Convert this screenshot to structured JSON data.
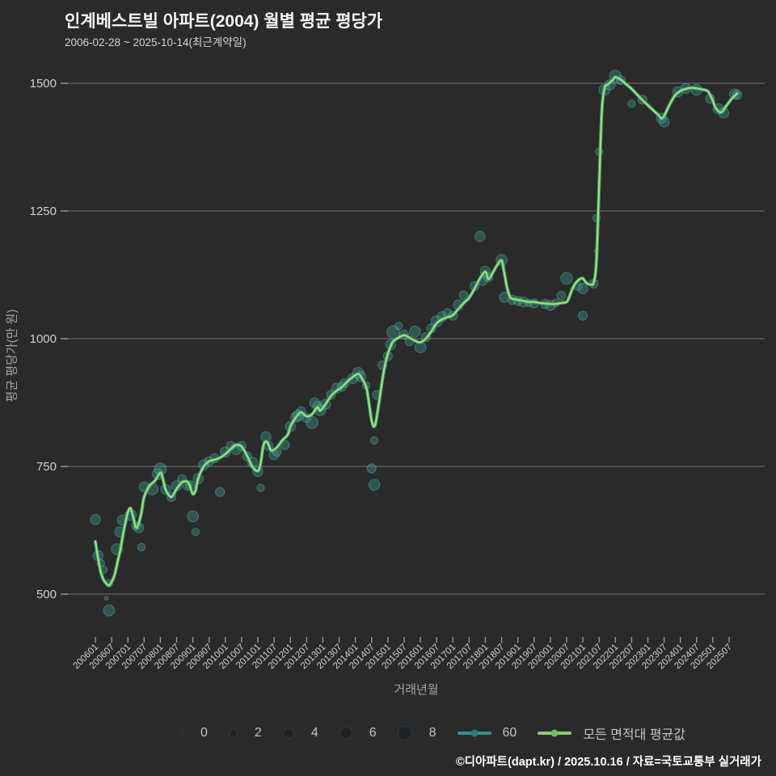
{
  "header": {
    "title": "인계베스트빌 아파트(2004) 월별 평균 평당가",
    "subtitle": "2006-02-28 ~ 2025-10-14(최근계약일)"
  },
  "chart_data": {
    "type": "line",
    "title": "인계베스트빌 아파트(2004) 월별 평균 평당가",
    "xlabel": "거래년월",
    "ylabel": "평균 평당가(만 원)",
    "ylim": [
      420,
      1520
    ],
    "grid": true,
    "legend_position": "bottom",
    "y_ticks": [
      500,
      750,
      1000,
      1250,
      1500
    ],
    "x_tick_labels": [
      "200601",
      "200607",
      "200701",
      "200707",
      "200801",
      "200807",
      "200901",
      "200907",
      "201001",
      "201007",
      "201101",
      "201107",
      "201201",
      "201207",
      "201301",
      "201307",
      "201401",
      "201407",
      "201501",
      "201507",
      "201601",
      "201607",
      "201701",
      "201707",
      "201801",
      "201807",
      "201901",
      "201907",
      "202001",
      "202007",
      "202101",
      "202107",
      "202201",
      "202207",
      "202301",
      "202307",
      "202401",
      "202407",
      "202501",
      "202507"
    ],
    "colors": {
      "background": "#2a2a2b",
      "grid": "#5c5c60",
      "tick": "#9a9a9a",
      "tick_text": "#cfcfcf",
      "scatter_fill": "rgba(61,166,152,0.36)",
      "scatter_stroke": "rgba(126,224,207,0.30)",
      "line_60": "#2f968d",
      "line_avg": "#a6e062"
    },
    "series": [
      {
        "name": "60",
        "color": "#2f968d",
        "width": 4.2
      },
      {
        "name": "모든 면적대 평균값",
        "color": "#a6e062",
        "width": 2.2
      }
    ],
    "avg_line_points": [
      [
        "200601",
        603
      ],
      [
        "200602",
        570
      ],
      [
        "200603",
        543
      ],
      [
        "200604",
        528
      ],
      [
        "200605",
        521
      ],
      [
        "200606",
        517
      ],
      [
        "200607",
        524
      ],
      [
        "200608",
        536
      ],
      [
        "200609",
        558
      ],
      [
        "200610",
        582
      ],
      [
        "200611",
        610
      ],
      [
        "200612",
        638
      ],
      [
        "200701",
        660
      ],
      [
        "200702",
        668
      ],
      [
        "200703",
        650
      ],
      [
        "200704",
        630
      ],
      [
        "200705",
        638
      ],
      [
        "200706",
        660
      ],
      [
        "200707",
        690
      ],
      [
        "200709",
        712
      ],
      [
        "200711",
        722
      ],
      [
        "200801",
        738
      ],
      [
        "200802",
        724
      ],
      [
        "200803",
        704
      ],
      [
        "200805",
        690
      ],
      [
        "200807",
        706
      ],
      [
        "200809",
        719
      ],
      [
        "200811",
        720
      ],
      [
        "200812",
        710
      ],
      [
        "200901",
        696
      ],
      [
        "200902",
        703
      ],
      [
        "200903",
        727
      ],
      [
        "200905",
        750
      ],
      [
        "200907",
        760
      ],
      [
        "200909",
        763
      ],
      [
        "200911",
        767
      ],
      [
        "201001",
        774
      ],
      [
        "201003",
        784
      ],
      [
        "201005",
        792
      ],
      [
        "201007",
        789
      ],
      [
        "201009",
        771
      ],
      [
        "201011",
        749
      ],
      [
        "201101",
        741
      ],
      [
        "201102",
        756
      ],
      [
        "201103",
        790
      ],
      [
        "201104",
        799
      ],
      [
        "201105",
        792
      ],
      [
        "201106",
        781
      ],
      [
        "201108",
        787
      ],
      [
        "201110",
        801
      ],
      [
        "201112",
        812
      ],
      [
        "201201",
        828
      ],
      [
        "201203",
        846
      ],
      [
        "201204",
        852
      ],
      [
        "201205",
        856
      ],
      [
        "201207",
        848
      ],
      [
        "201209",
        852
      ],
      [
        "201211",
        866
      ],
      [
        "201212",
        859
      ],
      [
        "201302",
        872
      ],
      [
        "201304",
        888
      ],
      [
        "201306",
        898
      ],
      [
        "201308",
        905
      ],
      [
        "201310",
        916
      ],
      [
        "201312",
        925
      ],
      [
        "201402",
        931
      ],
      [
        "201403",
        926
      ],
      [
        "201405",
        905
      ],
      [
        "201406",
        875
      ],
      [
        "201407",
        840
      ],
      [
        "201408",
        828
      ],
      [
        "201409",
        850
      ],
      [
        "201411",
        920
      ],
      [
        "201412",
        950
      ],
      [
        "201501",
        970
      ],
      [
        "201502",
        985
      ],
      [
        "201503",
        995
      ],
      [
        "201505",
        1002
      ],
      [
        "201507",
        1007
      ],
      [
        "201509",
        1002
      ],
      [
        "201511",
        996
      ],
      [
        "201601",
        993
      ],
      [
        "201603",
        1000
      ],
      [
        "201605",
        1014
      ],
      [
        "201607",
        1030
      ],
      [
        "201609",
        1038
      ],
      [
        "201611",
        1042
      ],
      [
        "201701",
        1046
      ],
      [
        "201703",
        1058
      ],
      [
        "201705",
        1070
      ],
      [
        "201707",
        1080
      ],
      [
        "201709",
        1098
      ],
      [
        "201711",
        1118
      ],
      [
        "201801",
        1131
      ],
      [
        "201802",
        1117
      ],
      [
        "201803",
        1122
      ],
      [
        "201805",
        1141
      ],
      [
        "201807",
        1153
      ],
      [
        "201808",
        1128
      ],
      [
        "201809",
        1100
      ],
      [
        "201810",
        1083
      ],
      [
        "201811",
        1078
      ],
      [
        "201901",
        1076
      ],
      [
        "201903",
        1074
      ],
      [
        "201905",
        1072
      ],
      [
        "201907",
        1072
      ],
      [
        "201909",
        1070
      ],
      [
        "201911",
        1069
      ],
      [
        "202001",
        1068
      ],
      [
        "202003",
        1068
      ],
      [
        "202005",
        1070
      ],
      [
        "202007",
        1072
      ],
      [
        "202008",
        1082
      ],
      [
        "202009",
        1096
      ],
      [
        "202010",
        1106
      ],
      [
        "202011",
        1113
      ],
      [
        "202012",
        1117
      ],
      [
        "202101",
        1118
      ],
      [
        "202102",
        1111
      ],
      [
        "202103",
        1107
      ],
      [
        "202104",
        1106
      ],
      [
        "202105",
        1110
      ],
      [
        "202106",
        1150
      ],
      [
        "202107",
        1300
      ],
      [
        "202108",
        1445
      ],
      [
        "202109",
        1490
      ],
      [
        "202110",
        1497
      ],
      [
        "202112",
        1506
      ],
      [
        "202201",
        1512
      ],
      [
        "202203",
        1507
      ],
      [
        "202205",
        1498
      ],
      [
        "202207",
        1489
      ],
      [
        "202209",
        1478
      ],
      [
        "202211",
        1467
      ],
      [
        "202301",
        1457
      ],
      [
        "202303",
        1447
      ],
      [
        "202305",
        1437
      ],
      [
        "202306",
        1431
      ],
      [
        "202307",
        1436
      ],
      [
        "202309",
        1458
      ],
      [
        "202311",
        1476
      ],
      [
        "202401",
        1485
      ],
      [
        "202403",
        1489
      ],
      [
        "202405",
        1491
      ],
      [
        "202407",
        1490
      ],
      [
        "202409",
        1488
      ],
      [
        "202411",
        1485
      ],
      [
        "202412",
        1477
      ],
      [
        "202501",
        1466
      ],
      [
        "202502",
        1452
      ],
      [
        "202504",
        1443
      ],
      [
        "202506",
        1456
      ],
      [
        "202508",
        1470
      ],
      [
        "202510",
        1480
      ]
    ],
    "scatter_points": [
      [
        "200601",
        646,
        3
      ],
      [
        "200602",
        575,
        3
      ],
      [
        "200603",
        560,
        1
      ],
      [
        "200604",
        548,
        1
      ],
      [
        "200605",
        492,
        0
      ],
      [
        "200606",
        468,
        4
      ],
      [
        "200606",
        521,
        1
      ],
      [
        "200609",
        588,
        4
      ],
      [
        "200610",
        622,
        3
      ],
      [
        "200611",
        645,
        3
      ],
      [
        "200702",
        655,
        4
      ],
      [
        "200704",
        634,
        2
      ],
      [
        "200705",
        630,
        3
      ],
      [
        "200706",
        592,
        1
      ],
      [
        "200707",
        710,
        3
      ],
      [
        "200710",
        706,
        5
      ],
      [
        "200712",
        735,
        4
      ],
      [
        "200801",
        745,
        5
      ],
      [
        "200803",
        705,
        3
      ],
      [
        "200805",
        690,
        2
      ],
      [
        "200807",
        712,
        3
      ],
      [
        "200809",
        725,
        2
      ],
      [
        "200811",
        712,
        2
      ],
      [
        "200812",
        713,
        2
      ],
      [
        "200901",
        652,
        4
      ],
      [
        "200902",
        622,
        1
      ],
      [
        "200903",
        726,
        3
      ],
      [
        "200905",
        753,
        3
      ],
      [
        "200907",
        760,
        2
      ],
      [
        "200909",
        766,
        2
      ],
      [
        "200911",
        700,
        2
      ],
      [
        "201001",
        778,
        3
      ],
      [
        "201003",
        790,
        2
      ],
      [
        "201005",
        784,
        4
      ],
      [
        "201007",
        790,
        2
      ],
      [
        "201009",
        770,
        2
      ],
      [
        "201011",
        758,
        3
      ],
      [
        "201101",
        740,
        3
      ],
      [
        "201102",
        708,
        1
      ],
      [
        "201104",
        808,
        3
      ],
      [
        "201105",
        790,
        2
      ],
      [
        "201107",
        773,
        3
      ],
      [
        "201108",
        779,
        2
      ],
      [
        "201111",
        792,
        2
      ],
      [
        "201201",
        828,
        3
      ],
      [
        "201203",
        846,
        3
      ],
      [
        "201204",
        850,
        4
      ],
      [
        "201205",
        858,
        2
      ],
      [
        "201207",
        845,
        2
      ],
      [
        "201209",
        836,
        5
      ],
      [
        "201210",
        874,
        3
      ],
      [
        "201211",
        868,
        2
      ],
      [
        "201212",
        860,
        4
      ],
      [
        "201302",
        872,
        3
      ],
      [
        "201304",
        890,
        2
      ],
      [
        "201306",
        903,
        3
      ],
      [
        "201308",
        906,
        2
      ],
      [
        "201309",
        913,
        2
      ],
      [
        "201312",
        922,
        3
      ],
      [
        "201402",
        933,
        4
      ],
      [
        "201403",
        926,
        3
      ],
      [
        "201405",
        908,
        1
      ],
      [
        "201407",
        746,
        2
      ],
      [
        "201408",
        714,
        4
      ],
      [
        "201408",
        801,
        1
      ],
      [
        "201409",
        890,
        2
      ],
      [
        "201411",
        948,
        2
      ],
      [
        "201501",
        966,
        2
      ],
      [
        "201502",
        988,
        3
      ],
      [
        "201503",
        1013,
        6
      ],
      [
        "201505",
        1025,
        1
      ],
      [
        "201507",
        1008,
        2
      ],
      [
        "201509",
        995,
        2
      ],
      [
        "201511",
        1014,
        4
      ],
      [
        "201601",
        983,
        4
      ],
      [
        "201603",
        1003,
        2
      ],
      [
        "201605",
        1020,
        2
      ],
      [
        "201607",
        1034,
        4
      ],
      [
        "201609",
        1043,
        3
      ],
      [
        "201611",
        1050,
        2
      ],
      [
        "201701",
        1045,
        2
      ],
      [
        "201703",
        1066,
        3
      ],
      [
        "201705",
        1085,
        2
      ],
      [
        "201709",
        1103,
        2
      ],
      [
        "201711",
        1200,
        3
      ],
      [
        "201712",
        1113,
        2
      ],
      [
        "201801",
        1132,
        3
      ],
      [
        "201802",
        1120,
        2
      ],
      [
        "201807",
        1154,
        4
      ],
      [
        "201808",
        1081,
        3
      ],
      [
        "201811",
        1076,
        2
      ],
      [
        "201901",
        1074,
        2
      ],
      [
        "201903",
        1072,
        3
      ],
      [
        "201905",
        1070,
        1
      ],
      [
        "201907",
        1069,
        2
      ],
      [
        "201911",
        1068,
        2
      ],
      [
        "202001",
        1065,
        3
      ],
      [
        "202003",
        1070,
        1
      ],
      [
        "202005",
        1084,
        2
      ],
      [
        "202007",
        1118,
        5
      ],
      [
        "202011",
        1104,
        2
      ],
      [
        "202101",
        1098,
        3
      ],
      [
        "202101",
        1045,
        2
      ],
      [
        "202105",
        1108,
        2
      ],
      [
        "202106",
        1172,
        0
      ],
      [
        "202106",
        1236,
        1
      ],
      [
        "202107",
        1366,
        1
      ],
      [
        "202109",
        1487,
        4
      ],
      [
        "202111",
        1497,
        3
      ],
      [
        "202201",
        1514,
        5
      ],
      [
        "202203",
        1506,
        2
      ],
      [
        "202207",
        1460,
        1
      ],
      [
        "202211",
        1468,
        2
      ],
      [
        "202306",
        1432,
        3
      ],
      [
        "202307",
        1424,
        3
      ],
      [
        "202312",
        1483,
        3
      ],
      [
        "202403",
        1490,
        3
      ],
      [
        "202407",
        1487,
        4
      ],
      [
        "202412",
        1470,
        2
      ],
      [
        "202503",
        1450,
        3
      ],
      [
        "202505",
        1442,
        3
      ],
      [
        "202509",
        1479,
        3
      ],
      [
        "202510",
        1477,
        2
      ]
    ]
  },
  "legend": {
    "size_items": [
      {
        "label": "0",
        "count": 0
      },
      {
        "label": "2",
        "count": 2
      },
      {
        "label": "4",
        "count": 4
      },
      {
        "label": "6",
        "count": 6
      },
      {
        "label": "8",
        "count": 8
      }
    ],
    "series_items": [
      {
        "label": "60",
        "color": "#2f968d"
      },
      {
        "label": "모든 면적대 평균값",
        "color": "#8ccf70"
      }
    ]
  },
  "footer": {
    "credit": "©디아파트(dapt.kr) / 2025.10.16 / 자료=국토교통부 실거래가"
  }
}
